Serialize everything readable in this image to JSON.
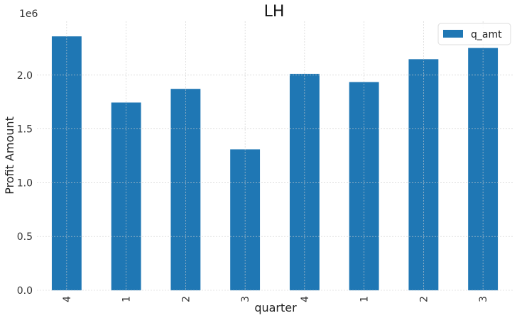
{
  "chart_data": {
    "type": "bar",
    "title": "LH",
    "xlabel": "quarter",
    "ylabel": "Profit Amount",
    "y_offset_label": "1e6",
    "categories": [
      "4",
      "1",
      "2",
      "3",
      "4",
      "1",
      "2",
      "3"
    ],
    "series": [
      {
        "name": "q_amt",
        "values": [
          2360000,
          1745000,
          1872000,
          1310000,
          2012000,
          1935000,
          2148000,
          2252000
        ]
      }
    ],
    "ylim": [
      0,
      2.5
    ],
    "yticks": [
      0.0,
      0.5,
      1.0,
      1.5,
      2.0
    ],
    "ytick_labels": [
      "0.0",
      "0.5",
      "1.0",
      "1.5",
      "2.0"
    ],
    "grid": true,
    "legend_position": "top-right",
    "colors": {
      "bar": "#1f77b4",
      "grid": "#cccccc"
    }
  }
}
